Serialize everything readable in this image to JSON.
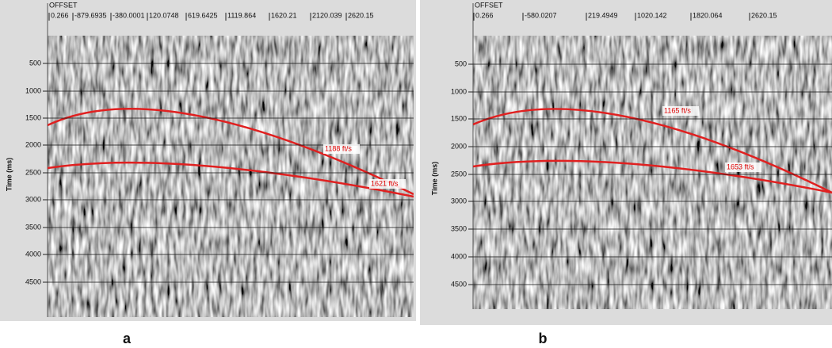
{
  "panels": [
    {
      "label": "a",
      "header": "OFFSET",
      "offset_ticks": [
        "0.266",
        "-879.6935",
        "-380.0001",
        "120.0748",
        "619.6425",
        "1119.864",
        "1620.21",
        "2120.039",
        "2620.15"
      ],
      "y_axis_title": "Time (ms)",
      "time_ticks": [
        "500",
        "1000",
        "1500",
        "2000",
        "2500",
        "3000",
        "3500",
        "4000",
        "4500"
      ],
      "velocity_labels": [
        "1188 ft/s",
        "1621 ft/s"
      ]
    },
    {
      "label": "b",
      "header": "OFFSET",
      "offset_ticks": [
        "0.266",
        "-580.0207",
        "219.4949",
        "1020.142",
        "1820.064",
        "2620.15"
      ],
      "y_axis_title": "Time (ms)",
      "time_ticks": [
        "500",
        "1000",
        "1500",
        "2000",
        "2500",
        "3000",
        "3500",
        "4000",
        "4500"
      ],
      "velocity_labels": [
        "1165 ft/s",
        "1653 ft/s"
      ]
    }
  ]
}
